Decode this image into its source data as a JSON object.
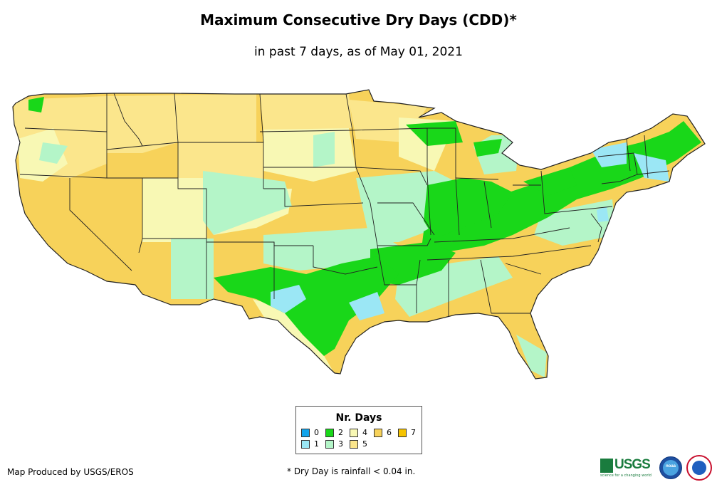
{
  "header": {
    "title": "Maximum Consecutive Dry Days (CDD)*",
    "subtitle": "in past 7 days, as of May 01, 2021"
  },
  "legend": {
    "title": "Nr. Days",
    "items": [
      {
        "label": "0",
        "color": "#12a4eb"
      },
      {
        "label": "1",
        "color": "#9be7f5"
      },
      {
        "label": "2",
        "color": "#19d719"
      },
      {
        "label": "3",
        "color": "#b4f5c8"
      },
      {
        "label": "4",
        "color": "#f8f8b4"
      },
      {
        "label": "5",
        "color": "#fbe68c"
      },
      {
        "label": "6",
        "color": "#f7d25a"
      },
      {
        "label": "7",
        "color": "#f5c300"
      }
    ]
  },
  "footer": {
    "credit": "Map Produced by USGS/EROS",
    "note": "* Dry Day is rainfall < 0.04 in.",
    "usgs_logo_text": "USGS",
    "usgs_tagline": "science for a changing world",
    "noaa_logo_text": "noaa"
  },
  "colors": {
    "state_border": "#222222",
    "background": "#ffffff"
  }
}
